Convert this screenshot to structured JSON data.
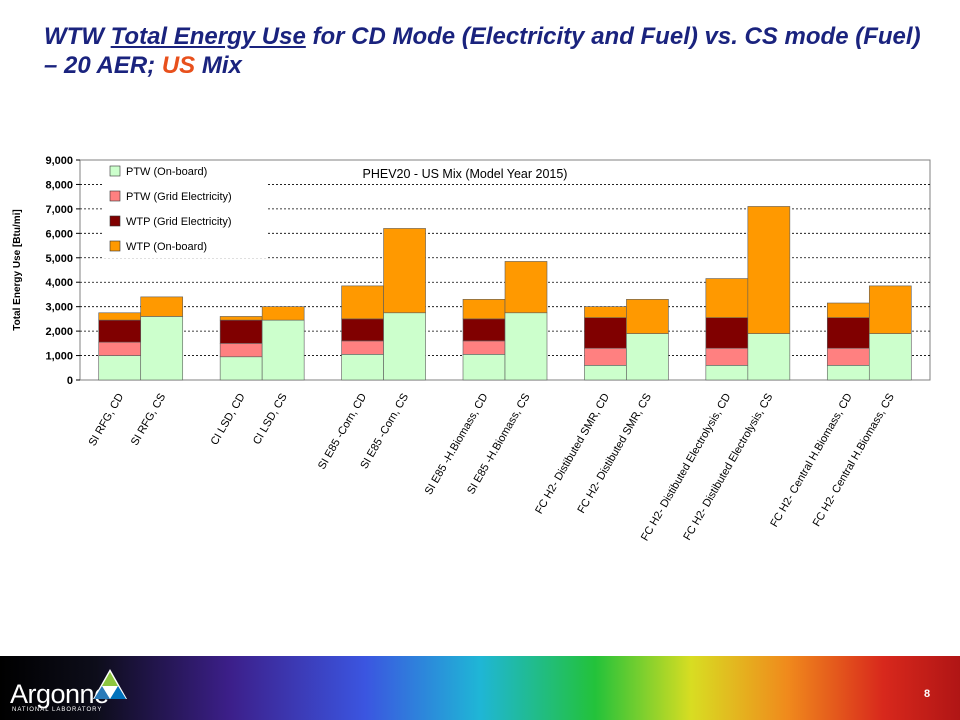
{
  "slide": {
    "title_part1": "WTW ",
    "title_underlined": "Total Energy Use",
    "title_part2": " for CD Mode (Electricity and Fuel) vs. CS mode (Fuel) – 20 AER; ",
    "title_highlight": "US",
    "title_part3": " Mix",
    "page_number": "8",
    "logo_text": "Argonne",
    "logo_subtext": "NATIONAL LABORATORY"
  },
  "chart_data": {
    "type": "bar",
    "stacked": true,
    "title": "PHEV20 - US Mix (Model Year 2015)",
    "xlabel": "",
    "ylabel": "Total Energy Use [Btu/mi]",
    "ylim": [
      0,
      9000
    ],
    "yticks": [
      "0",
      "1,000",
      "2,000",
      "3,000",
      "4,000",
      "5,000",
      "6,000",
      "7,000",
      "8,000",
      "9,000"
    ],
    "grid": "horizontal dotted",
    "legend_position": "top-left",
    "groups": [
      {
        "cd": "SI RFG, CD",
        "cs": "SI RFG, CS"
      },
      {
        "cd": "CI LSD, CD",
        "cs": "CI LSD, CS"
      },
      {
        "cd": "SI E85 -Corn, CD",
        "cs": "SI E85 -Corn, CS"
      },
      {
        "cd": "SI E85 -H.Biomass, CD",
        "cs": "SI E85 -H.Biomass, CS"
      },
      {
        "cd": "FC H2- Distibuted SMR, CD",
        "cs": "FC H2- Distibuted SMR, CS"
      },
      {
        "cd": "FC H2- Distibuted Electrolysis, CD",
        "cs": "FC H2- Distibuted Electrolysis, CS"
      },
      {
        "cd": "FC H2- Central H.Biomass, CD",
        "cs": "FC H2- Central H.Biomass, CS"
      }
    ],
    "categories": [
      "SI RFG, CD",
      "SI RFG, CS",
      "CI LSD, CD",
      "CI LSD, CS",
      "SI E85 -Corn, CD",
      "SI E85 -Corn, CS",
      "SI E85 -H.Biomass, CD",
      "SI E85 -H.Biomass, CS",
      "FC H2- Distibuted SMR, CD",
      "FC H2- Distibuted SMR, CS",
      "FC H2- Distibuted Electrolysis, CD",
      "FC H2- Distibuted Electrolysis, CS",
      "FC H2- Central H.Biomass, CD",
      "FC H2- Central H.Biomass, CS"
    ],
    "series": [
      {
        "name": "PTW (On-board)",
        "color": "#ccffcc",
        "values": [
          1000,
          2600,
          950,
          2450,
          1050,
          2750,
          1050,
          2750,
          600,
          1900,
          600,
          1900,
          600,
          1900
        ]
      },
      {
        "name": "PTW (Grid Electricity)",
        "color": "#ff8080",
        "values": [
          550,
          0,
          550,
          0,
          550,
          0,
          550,
          0,
          700,
          0,
          700,
          0,
          700,
          0
        ]
      },
      {
        "name": "WTP (Grid Electricity)",
        "color": "#800000",
        "values": [
          900,
          0,
          950,
          0,
          900,
          0,
          900,
          0,
          1250,
          0,
          1250,
          0,
          1250,
          0
        ]
      },
      {
        "name": "WTP (On-board)",
        "color": "#ff9900",
        "values": [
          300,
          800,
          150,
          550,
          1350,
          3450,
          800,
          2100,
          450,
          1400,
          1600,
          5200,
          600,
          1950
        ]
      }
    ]
  }
}
